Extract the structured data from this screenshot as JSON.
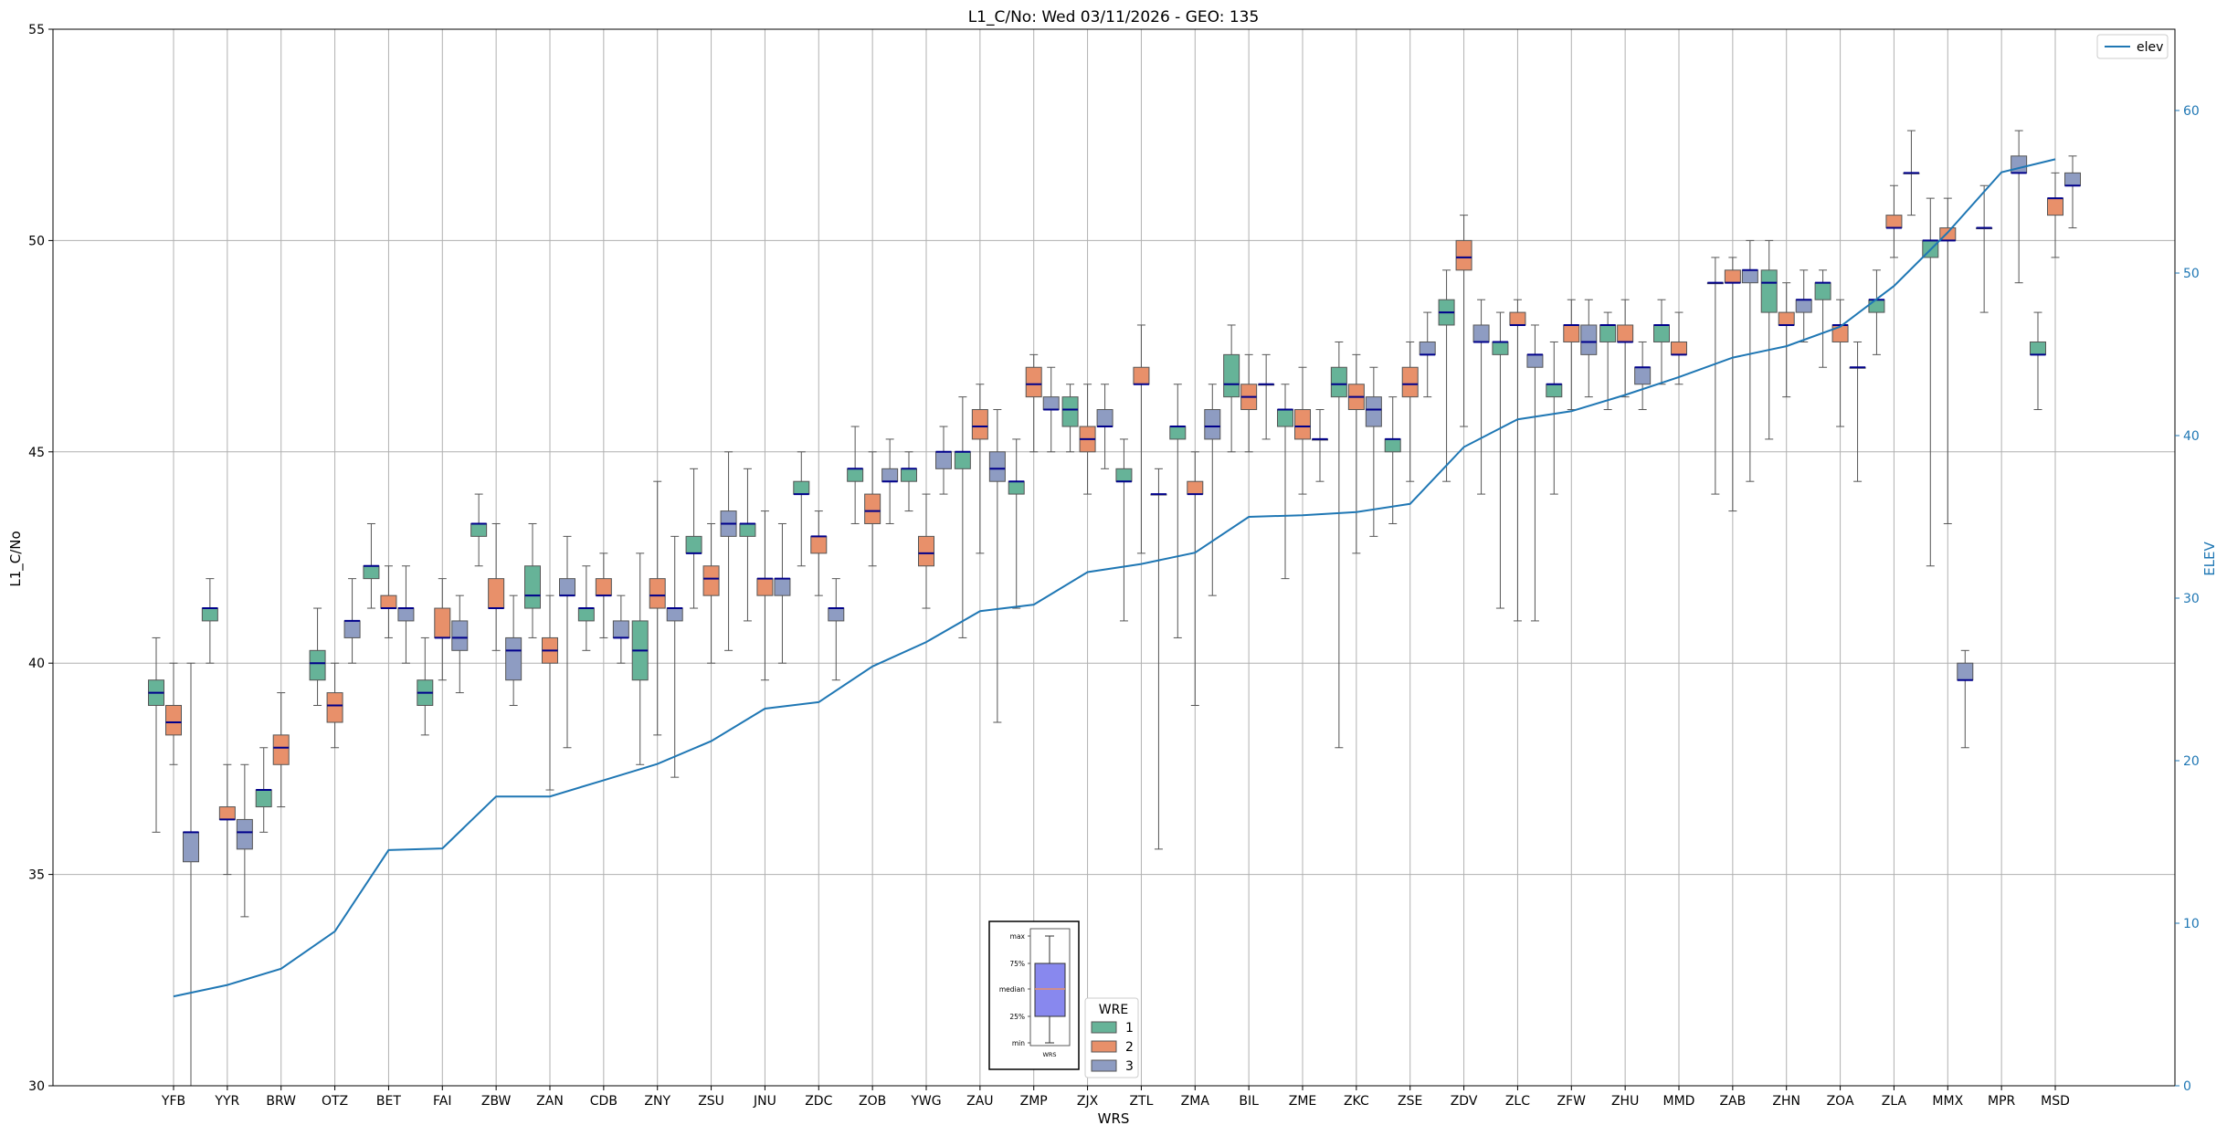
{
  "chart_data": {
    "type": "boxplot",
    "title": "L1_C/No: Wed 03/11/2026 - GEO: 135",
    "xlabel": "WRS",
    "ylabel": "L1_C/No",
    "y2label": "ELEV",
    "ylim": [
      30,
      55
    ],
    "y2lim": [
      0,
      65
    ],
    "yticks": [
      "30",
      "35",
      "40",
      "45",
      "50",
      "55"
    ],
    "y2ticks": [
      "0",
      "10",
      "20",
      "30",
      "40",
      "50",
      "60"
    ],
    "grid": true,
    "categories": [
      "YFB",
      "YYR",
      "BRW",
      "OTZ",
      "BET",
      "FAI",
      "ZBW",
      "ZAN",
      "CDB",
      "ZNY",
      "ZSU",
      "JNU",
      "ZDC",
      "ZOB",
      "YWG",
      "ZAU",
      "ZMP",
      "ZJX",
      "ZTL",
      "ZMA",
      "BIL",
      "ZME",
      "ZKC",
      "ZSE",
      "ZDV",
      "ZLC",
      "ZFW",
      "ZHU",
      "MMD",
      "ZAB",
      "ZHN",
      "ZOA",
      "ZLA",
      "MMX",
      "MPR",
      "MSD"
    ],
    "colors": {
      "1": "#66b398",
      "2": "#e8906a",
      "3": "#8e9cc2",
      "elev": "#1f77b4",
      "median": "#00008b",
      "grid": "#b0b0b0"
    },
    "wre_legend": {
      "title": "WRE",
      "labels": [
        "1",
        "2",
        "3"
      ]
    },
    "line_legend": {
      "label": "elev"
    },
    "inset": {
      "labels": [
        "max",
        "75%",
        "median",
        "25%",
        "min"
      ],
      "xlabel": "WRS"
    },
    "elevation": [
      5.5,
      6.2,
      7.2,
      9.5,
      14.5,
      14.6,
      17.8,
      17.8,
      18.8,
      19.8,
      21.2,
      23.2,
      23.6,
      25.8,
      27.3,
      29.2,
      29.6,
      31.6,
      32.1,
      32.8,
      35.0,
      35.1,
      35.3,
      35.8,
      39.3,
      41.0,
      41.5,
      42.5,
      43.6,
      44.8,
      45.5,
      46.7,
      49.2,
      52.5,
      56.2,
      57.0
    ],
    "boxes": [
      {
        "station": "YFB",
        "wre": 1,
        "q1": 39.0,
        "median": 39.3,
        "q3": 39.6,
        "min": 36.0,
        "max": 40.6
      },
      {
        "station": "YFB",
        "wre": 2,
        "q1": 38.3,
        "median": 38.6,
        "q3": 39.0,
        "min": 37.6,
        "max": 40.0
      },
      {
        "station": "YFB",
        "wre": 3,
        "q1": 35.3,
        "median": 36.0,
        "q3": 36.0,
        "min": 30.0,
        "max": 40.0
      },
      {
        "station": "YYR",
        "wre": 1,
        "q1": 41.0,
        "median": 41.3,
        "q3": 41.3,
        "min": 40.0,
        "max": 42.0
      },
      {
        "station": "YYR",
        "wre": 2,
        "q1": 36.3,
        "median": 36.3,
        "q3": 36.6,
        "min": 35.0,
        "max": 37.6
      },
      {
        "station": "YYR",
        "wre": 3,
        "q1": 35.6,
        "median": 36.0,
        "q3": 36.3,
        "min": 34.0,
        "max": 37.6
      },
      {
        "station": "BRW",
        "wre": 1,
        "q1": 36.6,
        "median": 37.0,
        "q3": 37.0,
        "min": 36.0,
        "max": 38.0
      },
      {
        "station": "BRW",
        "wre": 2,
        "q1": 37.6,
        "median": 38.0,
        "q3": 38.3,
        "min": 36.6,
        "max": 39.3
      },
      {
        "station": "OTZ",
        "wre": 1,
        "q1": 39.6,
        "median": 40.0,
        "q3": 40.3,
        "min": 39.0,
        "max": 41.3
      },
      {
        "station": "OTZ",
        "wre": 2,
        "q1": 38.6,
        "median": 39.0,
        "q3": 39.3,
        "min": 38.0,
        "max": 40.0
      },
      {
        "station": "OTZ",
        "wre": 3,
        "q1": 40.6,
        "median": 41.0,
        "q3": 41.0,
        "min": 40.0,
        "max": 42.0
      },
      {
        "station": "BET",
        "wre": 1,
        "q1": 42.0,
        "median": 42.3,
        "q3": 42.3,
        "min": 41.3,
        "max": 43.3
      },
      {
        "station": "BET",
        "wre": 2,
        "q1": 41.3,
        "median": 41.3,
        "q3": 41.6,
        "min": 40.6,
        "max": 42.3
      },
      {
        "station": "BET",
        "wre": 3,
        "q1": 41.0,
        "median": 41.3,
        "q3": 41.3,
        "min": 40.0,
        "max": 42.3
      },
      {
        "station": "FAI",
        "wre": 1,
        "q1": 39.0,
        "median": 39.3,
        "q3": 39.6,
        "min": 38.3,
        "max": 40.6
      },
      {
        "station": "FAI",
        "wre": 2,
        "q1": 40.6,
        "median": 40.6,
        "q3": 41.3,
        "min": 39.6,
        "max": 42.0
      },
      {
        "station": "FAI",
        "wre": 3,
        "q1": 40.3,
        "median": 40.6,
        "q3": 41.0,
        "min": 39.3,
        "max": 41.6
      },
      {
        "station": "ZBW",
        "wre": 1,
        "q1": 43.0,
        "median": 43.3,
        "q3": 43.3,
        "min": 42.3,
        "max": 44.0
      },
      {
        "station": "ZBW",
        "wre": 2,
        "q1": 41.3,
        "median": 41.3,
        "q3": 42.0,
        "min": 40.3,
        "max": 43.3
      },
      {
        "station": "ZBW",
        "wre": 3,
        "q1": 39.6,
        "median": 40.3,
        "q3": 40.6,
        "min": 39.0,
        "max": 41.6
      },
      {
        "station": "ZAN",
        "wre": 1,
        "q1": 41.3,
        "median": 41.6,
        "q3": 42.3,
        "min": 40.6,
        "max": 43.3
      },
      {
        "station": "ZAN",
        "wre": 2,
        "q1": 40.0,
        "median": 40.3,
        "q3": 40.6,
        "min": 37.0,
        "max": 41.6
      },
      {
        "station": "ZAN",
        "wre": 3,
        "q1": 41.6,
        "median": 41.6,
        "q3": 42.0,
        "min": 38.0,
        "max": 43.0
      },
      {
        "station": "CDB",
        "wre": 1,
        "q1": 41.0,
        "median": 41.3,
        "q3": 41.3,
        "min": 40.3,
        "max": 42.3
      },
      {
        "station": "CDB",
        "wre": 2,
        "q1": 41.6,
        "median": 41.6,
        "q3": 42.0,
        "min": 40.6,
        "max": 42.6
      },
      {
        "station": "CDB",
        "wre": 3,
        "q1": 40.6,
        "median": 40.6,
        "q3": 41.0,
        "min": 40.0,
        "max": 41.6
      },
      {
        "station": "ZNY",
        "wre": 1,
        "q1": 39.6,
        "median": 40.3,
        "q3": 41.0,
        "min": 37.6,
        "max": 42.6
      },
      {
        "station": "ZNY",
        "wre": 2,
        "q1": 41.3,
        "median": 41.6,
        "q3": 42.0,
        "min": 38.3,
        "max": 44.3
      },
      {
        "station": "ZNY",
        "wre": 3,
        "q1": 41.0,
        "median": 41.3,
        "q3": 41.3,
        "min": 37.3,
        "max": 43.0
      },
      {
        "station": "ZSU",
        "wre": 1,
        "q1": 42.6,
        "median": 42.6,
        "q3": 43.0,
        "min": 41.3,
        "max": 44.6
      },
      {
        "station": "ZSU",
        "wre": 2,
        "q1": 41.6,
        "median": 42.0,
        "q3": 42.3,
        "min": 40.0,
        "max": 43.3
      },
      {
        "station": "ZSU",
        "wre": 3,
        "q1": 43.0,
        "median": 43.3,
        "q3": 43.6,
        "min": 40.3,
        "max": 45.0
      },
      {
        "station": "JNU",
        "wre": 1,
        "q1": 43.0,
        "median": 43.3,
        "q3": 43.3,
        "min": 41.0,
        "max": 44.6
      },
      {
        "station": "JNU",
        "wre": 2,
        "q1": 41.6,
        "median": 42.0,
        "q3": 42.0,
        "min": 39.6,
        "max": 43.6
      },
      {
        "station": "JNU",
        "wre": 3,
        "q1": 41.6,
        "median": 42.0,
        "q3": 42.0,
        "min": 40.0,
        "max": 43.3
      },
      {
        "station": "ZDC",
        "wre": 1,
        "q1": 44.0,
        "median": 44.0,
        "q3": 44.3,
        "min": 42.3,
        "max": 45.0
      },
      {
        "station": "ZDC",
        "wre": 2,
        "q1": 42.6,
        "median": 43.0,
        "q3": 43.0,
        "min": 41.6,
        "max": 43.6
      },
      {
        "station": "ZDC",
        "wre": 3,
        "q1": 41.0,
        "median": 41.3,
        "q3": 41.3,
        "min": 39.6,
        "max": 42.0
      },
      {
        "station": "ZOB",
        "wre": 1,
        "q1": 44.3,
        "median": 44.6,
        "q3": 44.6,
        "min": 43.3,
        "max": 45.6
      },
      {
        "station": "ZOB",
        "wre": 2,
        "q1": 43.3,
        "median": 43.6,
        "q3": 44.0,
        "min": 42.3,
        "max": 45.0
      },
      {
        "station": "ZOB",
        "wre": 3,
        "q1": 44.3,
        "median": 44.3,
        "q3": 44.6,
        "min": 43.3,
        "max": 45.3
      },
      {
        "station": "YWG",
        "wre": 1,
        "q1": 44.3,
        "median": 44.6,
        "q3": 44.6,
        "min": 43.6,
        "max": 45.0
      },
      {
        "station": "YWG",
        "wre": 2,
        "q1": 42.3,
        "median": 42.6,
        "q3": 43.0,
        "min": 41.3,
        "max": 44.0
      },
      {
        "station": "YWG",
        "wre": 3,
        "q1": 44.6,
        "median": 45.0,
        "q3": 45.0,
        "min": 44.0,
        "max": 45.6
      },
      {
        "station": "ZAU",
        "wre": 1,
        "q1": 44.6,
        "median": 45.0,
        "q3": 45.0,
        "min": 40.6,
        "max": 46.3
      },
      {
        "station": "ZAU",
        "wre": 2,
        "q1": 45.3,
        "median": 45.6,
        "q3": 46.0,
        "min": 42.6,
        "max": 46.6
      },
      {
        "station": "ZAU",
        "wre": 3,
        "q1": 44.3,
        "median": 44.6,
        "q3": 45.0,
        "min": 38.6,
        "max": 46.0
      },
      {
        "station": "ZMP",
        "wre": 1,
        "q1": 44.0,
        "median": 44.3,
        "q3": 44.3,
        "min": 41.3,
        "max": 45.3
      },
      {
        "station": "ZMP",
        "wre": 2,
        "q1": 46.3,
        "median": 46.6,
        "q3": 47.0,
        "min": 45.0,
        "max": 47.3
      },
      {
        "station": "ZMP",
        "wre": 3,
        "q1": 46.0,
        "median": 46.0,
        "q3": 46.3,
        "min": 45.0,
        "max": 47.0
      },
      {
        "station": "ZJX",
        "wre": 1,
        "q1": 45.6,
        "median": 46.0,
        "q3": 46.3,
        "min": 45.0,
        "max": 46.6
      },
      {
        "station": "ZJX",
        "wre": 2,
        "q1": 45.0,
        "median": 45.3,
        "q3": 45.6,
        "min": 44.0,
        "max": 46.6
      },
      {
        "station": "ZJX",
        "wre": 3,
        "q1": 45.6,
        "median": 45.6,
        "q3": 46.0,
        "min": 44.6,
        "max": 46.6
      },
      {
        "station": "ZTL",
        "wre": 1,
        "q1": 44.3,
        "median": 44.3,
        "q3": 44.6,
        "min": 41.0,
        "max": 45.3
      },
      {
        "station": "ZTL",
        "wre": 2,
        "q1": 46.6,
        "median": 46.6,
        "q3": 47.0,
        "min": 42.6,
        "max": 48.0
      },
      {
        "station": "ZTL",
        "wre": 3,
        "q1": 44.0,
        "median": 44.0,
        "q3": 44.0,
        "min": 35.6,
        "max": 44.6
      },
      {
        "station": "ZMA",
        "wre": 1,
        "q1": 45.3,
        "median": 45.6,
        "q3": 45.6,
        "min": 40.6,
        "max": 46.6
      },
      {
        "station": "ZMA",
        "wre": 2,
        "q1": 44.0,
        "median": 44.0,
        "q3": 44.3,
        "min": 39.0,
        "max": 45.0
      },
      {
        "station": "ZMA",
        "wre": 3,
        "q1": 45.3,
        "median": 45.6,
        "q3": 46.0,
        "min": 41.6,
        "max": 46.6
      },
      {
        "station": "BIL",
        "wre": 1,
        "q1": 46.3,
        "median": 46.6,
        "q3": 47.3,
        "min": 45.0,
        "max": 48.0
      },
      {
        "station": "BIL",
        "wre": 2,
        "q1": 46.0,
        "median": 46.3,
        "q3": 46.6,
        "min": 45.0,
        "max": 47.3
      },
      {
        "station": "BIL",
        "wre": 3,
        "q1": 46.6,
        "median": 46.6,
        "q3": 46.6,
        "min": 45.3,
        "max": 47.3
      },
      {
        "station": "ZME",
        "wre": 1,
        "q1": 45.6,
        "median": 46.0,
        "q3": 46.0,
        "min": 42.0,
        "max": 46.6
      },
      {
        "station": "ZME",
        "wre": 2,
        "q1": 45.3,
        "median": 45.6,
        "q3": 46.0,
        "min": 44.0,
        "max": 47.0
      },
      {
        "station": "ZME",
        "wre": 3,
        "q1": 45.3,
        "median": 45.3,
        "q3": 45.3,
        "min": 44.3,
        "max": 46.0
      },
      {
        "station": "ZKC",
        "wre": 1,
        "q1": 46.3,
        "median": 46.6,
        "q3": 47.0,
        "min": 38.0,
        "max": 47.6
      },
      {
        "station": "ZKC",
        "wre": 2,
        "q1": 46.0,
        "median": 46.3,
        "q3": 46.6,
        "min": 42.6,
        "max": 47.3
      },
      {
        "station": "ZKC",
        "wre": 3,
        "q1": 45.6,
        "median": 46.0,
        "q3": 46.3,
        "min": 43.0,
        "max": 47.0
      },
      {
        "station": "ZSE",
        "wre": 1,
        "q1": 45.0,
        "median": 45.3,
        "q3": 45.3,
        "min": 43.3,
        "max": 46.3
      },
      {
        "station": "ZSE",
        "wre": 2,
        "q1": 46.3,
        "median": 46.6,
        "q3": 47.0,
        "min": 44.3,
        "max": 47.6
      },
      {
        "station": "ZSE",
        "wre": 3,
        "q1": 47.3,
        "median": 47.3,
        "q3": 47.6,
        "min": 46.3,
        "max": 48.3
      },
      {
        "station": "ZDV",
        "wre": 1,
        "q1": 48.0,
        "median": 48.3,
        "q3": 48.6,
        "min": 44.3,
        "max": 49.3
      },
      {
        "station": "ZDV",
        "wre": 2,
        "q1": 49.3,
        "median": 49.6,
        "q3": 50.0,
        "min": 45.6,
        "max": 50.6
      },
      {
        "station": "ZDV",
        "wre": 3,
        "q1": 47.6,
        "median": 47.6,
        "q3": 48.0,
        "min": 44.0,
        "max": 48.6
      },
      {
        "station": "ZLC",
        "wre": 1,
        "q1": 47.3,
        "median": 47.6,
        "q3": 47.6,
        "min": 41.3,
        "max": 48.3
      },
      {
        "station": "ZLC",
        "wre": 2,
        "q1": 48.0,
        "median": 48.0,
        "q3": 48.3,
        "min": 41.0,
        "max": 48.6
      },
      {
        "station": "ZLC",
        "wre": 3,
        "q1": 47.0,
        "median": 47.3,
        "q3": 47.3,
        "min": 41.0,
        "max": 48.0
      },
      {
        "station": "ZFW",
        "wre": 1,
        "q1": 46.3,
        "median": 46.6,
        "q3": 46.6,
        "min": 44.0,
        "max": 47.6
      },
      {
        "station": "ZFW",
        "wre": 2,
        "q1": 47.6,
        "median": 48.0,
        "q3": 48.0,
        "min": 46.0,
        "max": 48.6
      },
      {
        "station": "ZFW",
        "wre": 3,
        "q1": 47.3,
        "median": 47.6,
        "q3": 48.0,
        "min": 46.3,
        "max": 48.6
      },
      {
        "station": "ZHU",
        "wre": 1,
        "q1": 47.6,
        "median": 48.0,
        "q3": 48.0,
        "min": 46.0,
        "max": 48.3
      },
      {
        "station": "ZHU",
        "wre": 2,
        "q1": 47.6,
        "median": 47.6,
        "q3": 48.0,
        "min": 46.3,
        "max": 48.6
      },
      {
        "station": "ZHU",
        "wre": 3,
        "q1": 46.6,
        "median": 47.0,
        "q3": 47.0,
        "min": 46.0,
        "max": 47.6
      },
      {
        "station": "MMD",
        "wre": 1,
        "q1": 47.6,
        "median": 48.0,
        "q3": 48.0,
        "min": 46.6,
        "max": 48.6
      },
      {
        "station": "MMD",
        "wre": 2,
        "q1": 47.3,
        "median": 47.3,
        "q3": 47.6,
        "min": 46.6,
        "max": 48.3
      },
      {
        "station": "ZAB",
        "wre": 1,
        "q1": 49.0,
        "median": 49.0,
        "q3": 49.0,
        "min": 44.0,
        "max": 49.6
      },
      {
        "station": "ZAB",
        "wre": 2,
        "q1": 49.0,
        "median": 49.0,
        "q3": 49.3,
        "min": 43.6,
        "max": 49.6
      },
      {
        "station": "ZAB",
        "wre": 3,
        "q1": 49.0,
        "median": 49.3,
        "q3": 49.3,
        "min": 44.3,
        "max": 50.0
      },
      {
        "station": "ZHN",
        "wre": 1,
        "q1": 48.3,
        "median": 49.0,
        "q3": 49.3,
        "min": 45.3,
        "max": 50.0
      },
      {
        "station": "ZHN",
        "wre": 2,
        "q1": 48.0,
        "median": 48.0,
        "q3": 48.3,
        "min": 46.3,
        "max": 49.0
      },
      {
        "station": "ZHN",
        "wre": 3,
        "q1": 48.3,
        "median": 48.6,
        "q3": 48.6,
        "min": 47.6,
        "max": 49.3
      },
      {
        "station": "ZOA",
        "wre": 1,
        "q1": 48.6,
        "median": 49.0,
        "q3": 49.0,
        "min": 47.0,
        "max": 49.3
      },
      {
        "station": "ZOA",
        "wre": 2,
        "q1": 47.6,
        "median": 48.0,
        "q3": 48.0,
        "min": 45.6,
        "max": 48.6
      },
      {
        "station": "ZOA",
        "wre": 3,
        "q1": 47.0,
        "median": 47.0,
        "q3": 47.0,
        "min": 44.3,
        "max": 47.6
      },
      {
        "station": "ZLA",
        "wre": 1,
        "q1": 48.3,
        "median": 48.6,
        "q3": 48.6,
        "min": 47.3,
        "max": 49.3
      },
      {
        "station": "ZLA",
        "wre": 2,
        "q1": 50.3,
        "median": 50.3,
        "q3": 50.6,
        "min": 49.6,
        "max": 51.3
      },
      {
        "station": "ZLA",
        "wre": 3,
        "q1": 51.6,
        "median": 51.6,
        "q3": 51.6,
        "min": 50.6,
        "max": 52.6
      },
      {
        "station": "MMX",
        "wre": 1,
        "q1": 49.6,
        "median": 50.0,
        "q3": 50.0,
        "min": 42.3,
        "max": 51.0
      },
      {
        "station": "MMX",
        "wre": 2,
        "q1": 50.0,
        "median": 50.0,
        "q3": 50.3,
        "min": 43.3,
        "max": 51.0
      },
      {
        "station": "MMX",
        "wre": 3,
        "q1": 39.6,
        "median": 39.6,
        "q3": 40.0,
        "min": 38.0,
        "max": 40.3
      },
      {
        "station": "MPR",
        "wre": 1,
        "q1": 50.3,
        "median": 50.3,
        "q3": 50.3,
        "min": 48.3,
        "max": 51.3
      },
      {
        "station": "MPR",
        "wre": 3,
        "q1": 51.6,
        "median": 51.6,
        "q3": 52.0,
        "min": 49.0,
        "max": 52.6
      },
      {
        "station": "MSD",
        "wre": 1,
        "q1": 47.3,
        "median": 47.3,
        "q3": 47.6,
        "min": 46.0,
        "max": 48.3
      },
      {
        "station": "MSD",
        "wre": 2,
        "q1": 50.6,
        "median": 51.0,
        "q3": 51.0,
        "min": 49.6,
        "max": 51.6
      },
      {
        "station": "MSD",
        "wre": 3,
        "q1": 51.3,
        "median": 51.3,
        "q3": 51.6,
        "min": 50.3,
        "max": 52.0
      }
    ]
  }
}
